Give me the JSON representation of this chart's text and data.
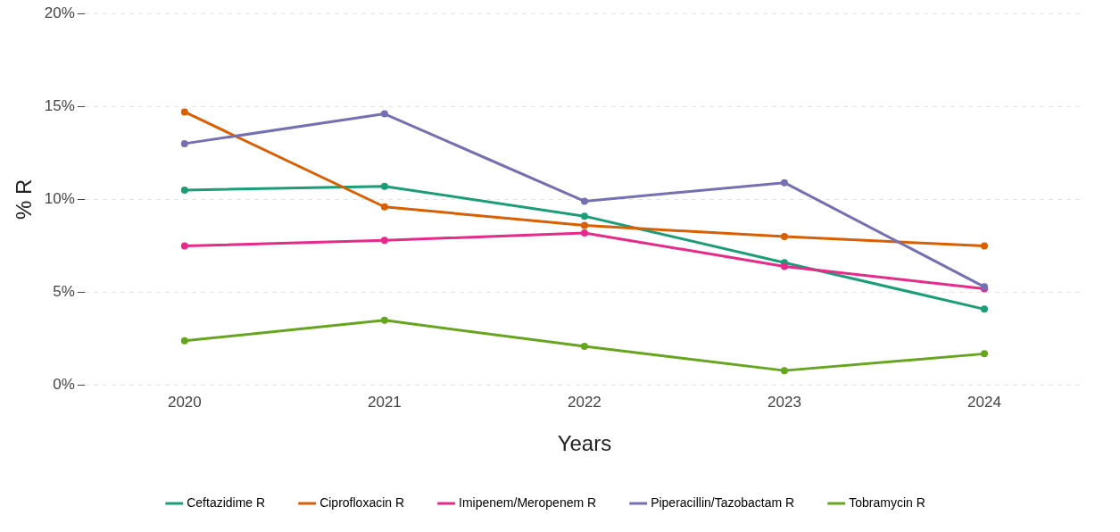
{
  "chart_data": {
    "type": "line",
    "xlabel": "Years",
    "ylabel": "% R",
    "categories": [
      "2020",
      "2021",
      "2022",
      "2023",
      "2024"
    ],
    "series": [
      {
        "name": "Ceftazidime R",
        "color": "#1b9e77",
        "values": [
          10.5,
          10.7,
          9.1,
          6.6,
          4.1
        ]
      },
      {
        "name": "Ciprofloxacin R",
        "color": "#d95f02",
        "values": [
          14.7,
          9.6,
          8.6,
          8.0,
          7.5
        ]
      },
      {
        "name": "Imipenem/Meropenem R",
        "color": "#e7298a",
        "values": [
          7.5,
          7.8,
          8.2,
          6.4,
          5.2
        ]
      },
      {
        "name": "Piperacillin/Tazobactam R",
        "color": "#7570b3",
        "values": [
          13.0,
          14.6,
          9.9,
          10.9,
          5.3
        ]
      },
      {
        "name": "Tobramycin R",
        "color": "#66a61e",
        "values": [
          2.4,
          3.5,
          2.1,
          0.8,
          1.7
        ]
      }
    ],
    "ylim": [
      0,
      20
    ],
    "yticks": [
      {
        "value": 0,
        "label": "0%"
      },
      {
        "value": 5,
        "label": "5%"
      },
      {
        "value": 10,
        "label": "10%"
      },
      {
        "value": 15,
        "label": "15%"
      },
      {
        "value": 20,
        "label": "20%"
      }
    ],
    "grid": "y",
    "legend": "bottom",
    "marker": "circle",
    "line_style": "solid"
  }
}
